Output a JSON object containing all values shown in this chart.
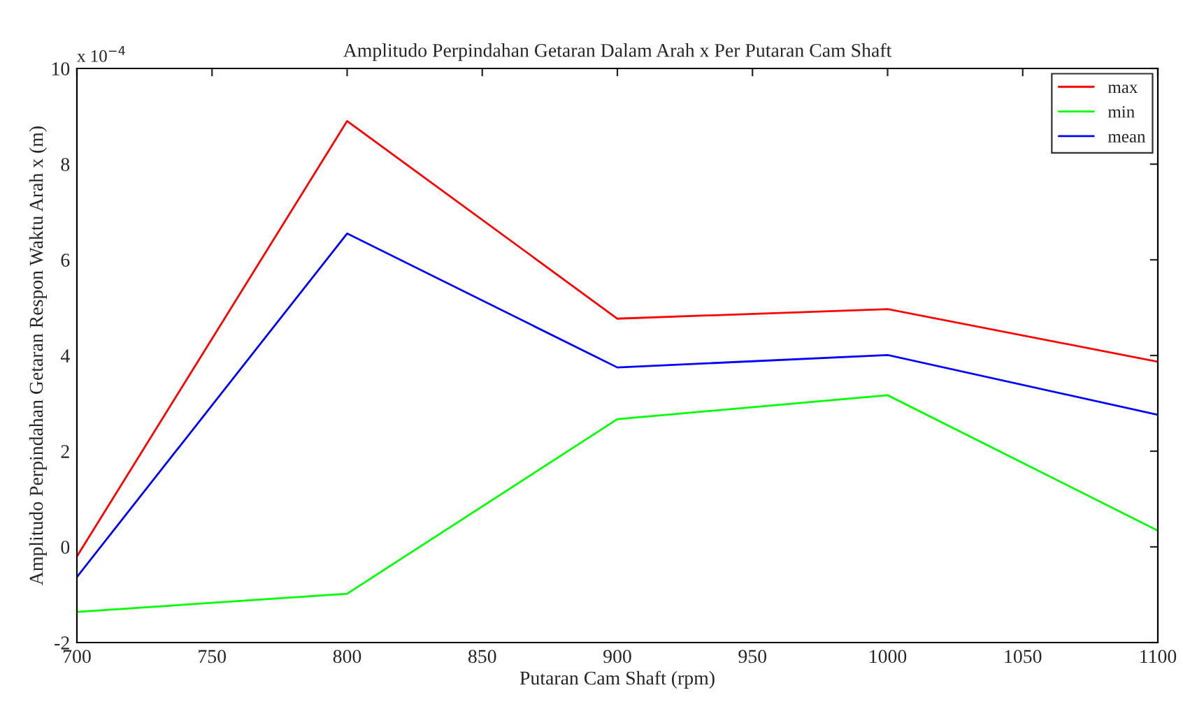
{
  "chart_data": {
    "type": "line",
    "title": "Amplitudo Perpindahan Getaran Dalam Arah x Per Putaran Cam Shaft",
    "xlabel": "Putaran Cam Shaft (rpm)",
    "ylabel": "Amplitudo Perpindahan Getaran Respon Waktu Arah x (m)",
    "annotations": [
      "x 10$^{−4}$"
    ],
    "x": [
      700,
      800,
      900,
      1000,
      1100
    ],
    "series": [
      {
        "name": "max",
        "color": "#ff0000",
        "values": [
          -0.2,
          8.9,
          4.77,
          4.97,
          3.87
        ]
      },
      {
        "name": "min",
        "color": "#00ff00",
        "values": [
          -1.36,
          -0.98,
          2.67,
          3.17,
          0.34
        ]
      },
      {
        "name": "mean",
        "color": "#0000ff",
        "values": [
          -0.63,
          6.55,
          3.75,
          4.01,
          2.76
        ]
      }
    ],
    "xlim": [
      700,
      1100
    ],
    "xticks": [
      700,
      750,
      800,
      850,
      900,
      950,
      1000,
      1050,
      1100
    ],
    "ylim": [
      -2,
      10
    ],
    "yticks": [
      -2,
      0,
      2,
      4,
      6,
      8,
      10
    ],
    "legend": "top right",
    "grid": false,
    "line_style": "solid",
    "marker": "none"
  }
}
